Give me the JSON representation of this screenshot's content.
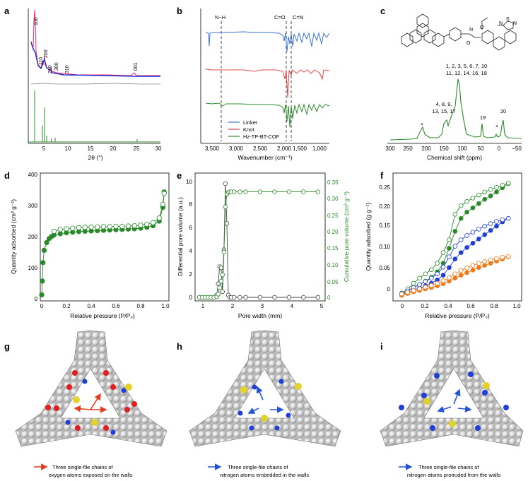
{
  "panels": {
    "a": {
      "label": "a",
      "xlabel": "2θ (°)",
      "xticks": [
        "5",
        "10",
        "15",
        "20",
        "25",
        "30"
      ],
      "peaks": [
        "100",
        "110",
        "200",
        "210",
        "300",
        "310",
        "001"
      ]
    },
    "b": {
      "label": "b",
      "xlabel": "Wavenumber (cm⁻¹)",
      "xticks": [
        "3,500",
        "3,000",
        "2,500",
        "2,000",
        "1,500",
        "1,000"
      ],
      "markers": [
        "N−H",
        "C=O",
        "C=N"
      ],
      "legend": [
        "Linker",
        "Knot",
        "Hz-TP-BT-COF"
      ],
      "colors": {
        "linker": "#3b73d9",
        "knot": "#e8484a",
        "cof": "#2e8b2e"
      }
    },
    "c": {
      "label": "c",
      "xlabel": "Chemical shift (ppm)",
      "xticks": [
        "300",
        "250",
        "200",
        "150",
        "100",
        "50",
        "0",
        "−50"
      ],
      "assign1": "1, 2, 3, 5, 6, 7, 10",
      "assign2": "11, 12, 14, 16, 18",
      "assign3": "4, 8, 9,",
      "assign4": "13, 15, 17",
      "p19": "19",
      "p20": "20",
      "star": "*"
    },
    "d": {
      "label": "d",
      "xlabel": "Relative pressure (P/P₀)",
      "ylabel": "Quantity adsorbed (cm³ g⁻¹)",
      "xticks": [
        "0",
        "0.2",
        "0.4",
        "0.6",
        "0.8",
        "1.0"
      ],
      "yticks": [
        "0",
        "100",
        "200",
        "300",
        "400"
      ]
    },
    "e": {
      "label": "e",
      "xlabel": "Pore width (mm)",
      "ylabel_left": "Differential pore volume (a.u.)",
      "ylabel_right": "Cumulative pore volume (cm³ g⁻¹)",
      "xticks": [
        "1",
        "2",
        "3",
        "4",
        "5"
      ],
      "yticks_left": [
        "0",
        "2",
        "4",
        "6",
        "8",
        "10"
      ],
      "yticks_right": [
        "0",
        "0.05",
        "0.10",
        "0.15",
        "0.20",
        "0.25",
        "0.30",
        "0.35"
      ]
    },
    "f": {
      "label": "f",
      "xlabel": "Relative pressure (P/P₀)",
      "ylabel": "Quantity adsorbed (g g⁻¹)",
      "xticks": [
        "0",
        "0.2",
        "0.4",
        "0.6",
        "0.8",
        "1.0"
      ],
      "yticks": [
        "0",
        "0.05",
        "0.10",
        "0.15",
        "0.20",
        "0.25"
      ]
    },
    "g": {
      "label": "g",
      "caption1": "Three single-file chains of",
      "caption2": "oxygen atoms exposed on the walls",
      "arrow_color": "#e83a1e"
    },
    "h": {
      "label": "h",
      "caption1": "Three single-file chains of",
      "caption2": "nitrogen atoms embedded in the walls",
      "arrow_color": "#2453d6"
    },
    "i": {
      "label": "i",
      "caption1": "Three single-file chains of",
      "caption2": "nitrogen atoms protruded from the walls",
      "arrow_color": "#2453d6"
    }
  },
  "chart_data": [
    {
      "panel": "d",
      "type": "scatter",
      "x": [
        0.0,
        0.005,
        0.01,
        0.02,
        0.04,
        0.06,
        0.08,
        0.1,
        0.15,
        0.2,
        0.25,
        0.3,
        0.35,
        0.4,
        0.45,
        0.5,
        0.55,
        0.6,
        0.65,
        0.7,
        0.75,
        0.8,
        0.85,
        0.9,
        0.95,
        0.98,
        0.99
      ],
      "series": [
        {
          "name": "",
          "role": "adsorption",
          "values": [
            15,
            60,
            120,
            160,
            185,
            198,
            205,
            210,
            214,
            217,
            219,
            221,
            222,
            223,
            224,
            225,
            226,
            227,
            228,
            229,
            230,
            232,
            235,
            240,
            255,
            300,
            350
          ]
        },
        {
          "name": "",
          "role": "desorption",
          "values": [
            null,
            null,
            null,
            null,
            null,
            null,
            null,
            222,
            228,
            230,
            232,
            234,
            235,
            236,
            236,
            237,
            237,
            238,
            238,
            239,
            240,
            242,
            245,
            250,
            265,
            310,
            345
          ]
        }
      ],
      "xlim": [
        0,
        1.0
      ],
      "ylim": [
        0,
        400
      ],
      "colors": [
        "#2a8a2a",
        "#2a8a2a"
      ]
    },
    {
      "panel": "e",
      "type": "line",
      "x": [
        0.9,
        1.0,
        1.1,
        1.2,
        1.3,
        1.4,
        1.5,
        1.55,
        1.6,
        1.65,
        1.7,
        1.75,
        1.8,
        1.85,
        1.9,
        1.95,
        2.0,
        2.1,
        2.3,
        2.5,
        3.0,
        3.5,
        4.0,
        4.5,
        5.0
      ],
      "series": [
        {
          "name": "",
          "axis": "left",
          "values": [
            0,
            0,
            0,
            0,
            0,
            0,
            0.2,
            1.2,
            2.7,
            2.6,
            0.5,
            4.2,
            10.0,
            6.5,
            0.2,
            0,
            0,
            0,
            0,
            0,
            0,
            0,
            0,
            0,
            0
          ]
        },
        {
          "name": "",
          "axis": "right",
          "values": [
            0,
            0,
            0,
            0,
            0,
            0,
            0.002,
            0.01,
            0.03,
            0.05,
            0.07,
            0.14,
            0.28,
            0.32,
            0.325,
            0.327,
            0.327,
            0.327,
            0.327,
            0.327,
            0.327,
            0.327,
            0.327,
            0.327,
            0.327
          ]
        }
      ],
      "xlim": [
        0.8,
        5.2
      ],
      "ylim_left": [
        0,
        10.5
      ],
      "ylim_right": [
        0,
        0.35
      ],
      "colors": [
        "#444444",
        "#2a8a2a"
      ]
    },
    {
      "panel": "f",
      "type": "scatter",
      "x": [
        0.0,
        0.05,
        0.1,
        0.15,
        0.2,
        0.25,
        0.3,
        0.35,
        0.4,
        0.45,
        0.5,
        0.55,
        0.6,
        0.65,
        0.7,
        0.75,
        0.8,
        0.85,
        0.9
      ],
      "series": [
        {
          "name": "",
          "role": "green-ads",
          "values": [
            0.0,
            0.01,
            0.018,
            0.025,
            0.033,
            0.042,
            0.055,
            0.075,
            0.11,
            0.15,
            0.18,
            0.195,
            0.205,
            0.215,
            0.225,
            0.233,
            0.242,
            0.252,
            0.262
          ]
        },
        {
          "name": "",
          "role": "green-des",
          "values": [
            0.005,
            0.015,
            0.028,
            0.04,
            0.05,
            0.06,
            0.075,
            0.1,
            0.13,
            0.19,
            0.21,
            0.22,
            0.228,
            0.235,
            0.242,
            0.248,
            0.253,
            0.258,
            0.263
          ]
        },
        {
          "name": "",
          "role": "blue-ads",
          "values": [
            0.0,
            0.006,
            0.012,
            0.017,
            0.022,
            0.028,
            0.036,
            0.047,
            0.065,
            0.085,
            0.1,
            0.112,
            0.122,
            0.132,
            0.142,
            0.152,
            0.162,
            0.172,
            0.18
          ]
        },
        {
          "name": "",
          "role": "blue-des",
          "values": [
            0.004,
            0.01,
            0.018,
            0.025,
            0.032,
            0.04,
            0.05,
            0.066,
            0.09,
            0.115,
            0.13,
            0.14,
            0.148,
            0.155,
            0.162,
            0.168,
            0.173,
            0.177,
            0.18
          ]
        },
        {
          "name": "",
          "role": "orange-ads",
          "values": [
            0.0,
            0.004,
            0.008,
            0.011,
            0.015,
            0.018,
            0.022,
            0.027,
            0.033,
            0.04,
            0.047,
            0.053,
            0.059,
            0.065,
            0.07,
            0.075,
            0.08,
            0.085,
            0.09
          ]
        },
        {
          "name": "",
          "role": "orange-des",
          "values": [
            0.003,
            0.007,
            0.011,
            0.015,
            0.019,
            0.023,
            0.028,
            0.034,
            0.041,
            0.05,
            0.058,
            0.064,
            0.07,
            0.075,
            0.079,
            0.083,
            0.086,
            0.089,
            0.091
          ]
        }
      ],
      "xlim": [
        -0.05,
        1.0
      ],
      "ylim": [
        -0.01,
        0.28
      ],
      "colors": [
        "#2a8a2a",
        "#2a8a2a",
        "#1f3fd6",
        "#1f3fd6",
        "#f07a1a",
        "#f07a1a"
      ]
    }
  ]
}
